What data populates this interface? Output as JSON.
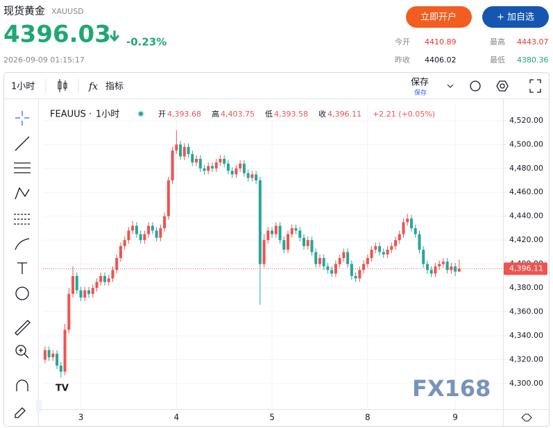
{
  "header": {
    "title": "现货黄金",
    "symbol": "XAUUSD",
    "price": "4396.03",
    "change": "-0.23%",
    "datetime": "2026-09-09 01:15:17",
    "open_account": "立即开户",
    "add_watch": "+ 加自选",
    "stats": [
      {
        "label": "今开",
        "value": "4410.89"
      },
      {
        "label": "最高",
        "value": "4443.07"
      },
      {
        "label": "昨收",
        "value": "4406.02"
      },
      {
        "label": "最低",
        "value": "4380.36"
      }
    ]
  },
  "toolbar": {
    "interval": "1小时",
    "indicators": "指标",
    "save": "保存",
    "save_sub": "保存"
  },
  "legend": {
    "symbol": "FEAUUS",
    "interval": "1小时",
    "open_label": "开",
    "open": "4,393.68",
    "high_label": "高",
    "high": "4,403.75",
    "low_label": "低",
    "low": "4,393.58",
    "close_label": "收",
    "close": "4,396.11",
    "change": "+2.21 (+0.05%)"
  },
  "watermark": "FX168",
  "chart_data": {
    "type": "candlestick",
    "up_color": "#ef5350",
    "down_color": "#26a69a",
    "grid": true,
    "xlim": [
      -0.5,
      115
    ],
    "xticks": [
      {
        "value": 9,
        "label": "3"
      },
      {
        "value": 33,
        "label": "4"
      },
      {
        "value": 57,
        "label": "5"
      },
      {
        "value": 81,
        "label": "8"
      },
      {
        "value": 103,
        "label": "9"
      }
    ],
    "ylim": [
      4278.5,
      4535
    ],
    "yticks": [
      {
        "value": 4300,
        "label": "4,300.00"
      },
      {
        "value": 4320,
        "label": "4,320.00"
      },
      {
        "value": 4340,
        "label": "4,340.00"
      },
      {
        "value": 4360,
        "label": "4,360.00"
      },
      {
        "value": 4380,
        "label": "4,380.00"
      },
      {
        "value": 4400,
        "label": "4,400.00"
      },
      {
        "value": 4420,
        "label": "4,420.00"
      },
      {
        "value": 4440,
        "label": "4,440.00"
      },
      {
        "value": 4460,
        "label": "4,460.00"
      },
      {
        "value": 4480,
        "label": "4,480.00"
      },
      {
        "value": 4500,
        "label": "4,500.00"
      },
      {
        "value": 4520,
        "label": "4,520.00"
      }
    ],
    "last_price": {
      "value": 4396.11,
      "label": "4,396.11"
    },
    "open": [
      4320,
      4328,
      4322,
      4325,
      4315,
      4310,
      4345,
      4375,
      4390,
      4378,
      4372,
      4378,
      4375,
      4380,
      4385,
      4390,
      4385,
      4388,
      4395,
      4405,
      4415,
      4420,
      4428,
      4432,
      4425,
      4420,
      4425,
      4432,
      4428,
      4422,
      4430,
      4440,
      4470,
      4495,
      4500,
      4490,
      4498,
      4492,
      4485,
      4488,
      4480,
      4478,
      4482,
      4480,
      4485,
      4488,
      4484,
      4478,
      4475,
      4480,
      4484,
      4476,
      4472,
      4475,
      4470,
      4400,
      4420,
      4428,
      4425,
      4432,
      4420,
      4412,
      4425,
      4430,
      4428,
      4422,
      4415,
      4420,
      4410,
      4400,
      4405,
      4398,
      4395,
      4392,
      4400,
      4405,
      4410,
      4400,
      4390,
      4388,
      4395,
      4400,
      4405,
      4412,
      4415,
      4410,
      4408,
      4412,
      4415,
      4420,
      4425,
      4435,
      4438,
      4430,
      4425,
      4412,
      4400,
      4395,
      4392,
      4398,
      4400,
      4402,
      4395,
      4398,
      4393.68
    ],
    "high": [
      4331,
      4331,
      4328,
      4328,
      4318,
      4350,
      4380,
      4398,
      4393,
      4381,
      4381,
      4381,
      4383,
      4388,
      4393,
      4393,
      4391,
      4398,
      4408,
      4418,
      4423,
      4431,
      4436,
      4435,
      4428,
      4428,
      4435,
      4435,
      4431,
      4433,
      4443,
      4473,
      4498,
      4512,
      4503,
      4501,
      4501,
      4495,
      4491,
      4491,
      4483,
      4485,
      4485,
      4488,
      4491,
      4491,
      4487,
      4481,
      4483,
      4487,
      4487,
      4479,
      4478,
      4478,
      4473,
      4425,
      4431,
      4431,
      4435,
      4435,
      4423,
      4428,
      4433,
      4433,
      4431,
      4425,
      4423,
      4423,
      4413,
      4408,
      4408,
      4401,
      4398,
      4403,
      4408,
      4413,
      4413,
      4403,
      4393,
      4398,
      4403,
      4408,
      4415,
      4418,
      4418,
      4413,
      4415,
      4418,
      4423,
      4428,
      4438,
      4442,
      4441,
      4433,
      4428,
      4415,
      4403,
      4398,
      4401,
      4403,
      4405,
      4405,
      4401,
      4401,
      4403.75
    ],
    "low": [
      4317,
      4319,
      4319,
      4312,
      4305,
      4307,
      4342,
      4372,
      4375,
      4369,
      4369,
      4372,
      4372,
      4377,
      4382,
      4382,
      4382,
      4385,
      4392,
      4402,
      4412,
      4417,
      4425,
      4422,
      4417,
      4417,
      4422,
      4425,
      4419,
      4419,
      4427,
      4437,
      4467,
      4492,
      4487,
      4487,
      4489,
      4482,
      4482,
      4477,
      4475,
      4475,
      4477,
      4477,
      4482,
      4481,
      4475,
      4472,
      4472,
      4477,
      4473,
      4469,
      4469,
      4467,
      4366,
      4397,
      4417,
      4422,
      4422,
      4417,
      4409,
      4409,
      4422,
      4425,
      4419,
      4412,
      4412,
      4407,
      4397,
      4397,
      4395,
      4392,
      4389,
      4389,
      4397,
      4402,
      4397,
      4387,
      4385,
      4385,
      4392,
      4397,
      4402,
      4409,
      4407,
      4405,
      4405,
      4409,
      4412,
      4417,
      4422,
      4432,
      4427,
      4422,
      4409,
      4397,
      4392,
      4389,
      4389,
      4395,
      4397,
      4392,
      4392,
      4390,
      4393.58
    ],
    "close": [
      4328,
      4322,
      4325,
      4315,
      4310,
      4345,
      4375,
      4390,
      4378,
      4372,
      4378,
      4375,
      4380,
      4385,
      4390,
      4385,
      4388,
      4395,
      4405,
      4415,
      4420,
      4428,
      4432,
      4425,
      4420,
      4425,
      4432,
      4428,
      4422,
      4430,
      4440,
      4470,
      4495,
      4500,
      4490,
      4498,
      4492,
      4485,
      4488,
      4480,
      4478,
      4482,
      4480,
      4485,
      4488,
      4484,
      4478,
      4475,
      4480,
      4484,
      4476,
      4472,
      4475,
      4470,
      4400,
      4420,
      4428,
      4425,
      4432,
      4420,
      4412,
      4425,
      4430,
      4428,
      4422,
      4415,
      4420,
      4410,
      4400,
      4405,
      4398,
      4395,
      4392,
      4400,
      4405,
      4410,
      4400,
      4390,
      4388,
      4395,
      4400,
      4405,
      4412,
      4415,
      4410,
      4408,
      4412,
      4415,
      4420,
      4425,
      4435,
      4438,
      4430,
      4425,
      4412,
      4400,
      4395,
      4392,
      4398,
      4400,
      4402,
      4395,
      4398,
      4393.68,
      4396.11
    ]
  }
}
